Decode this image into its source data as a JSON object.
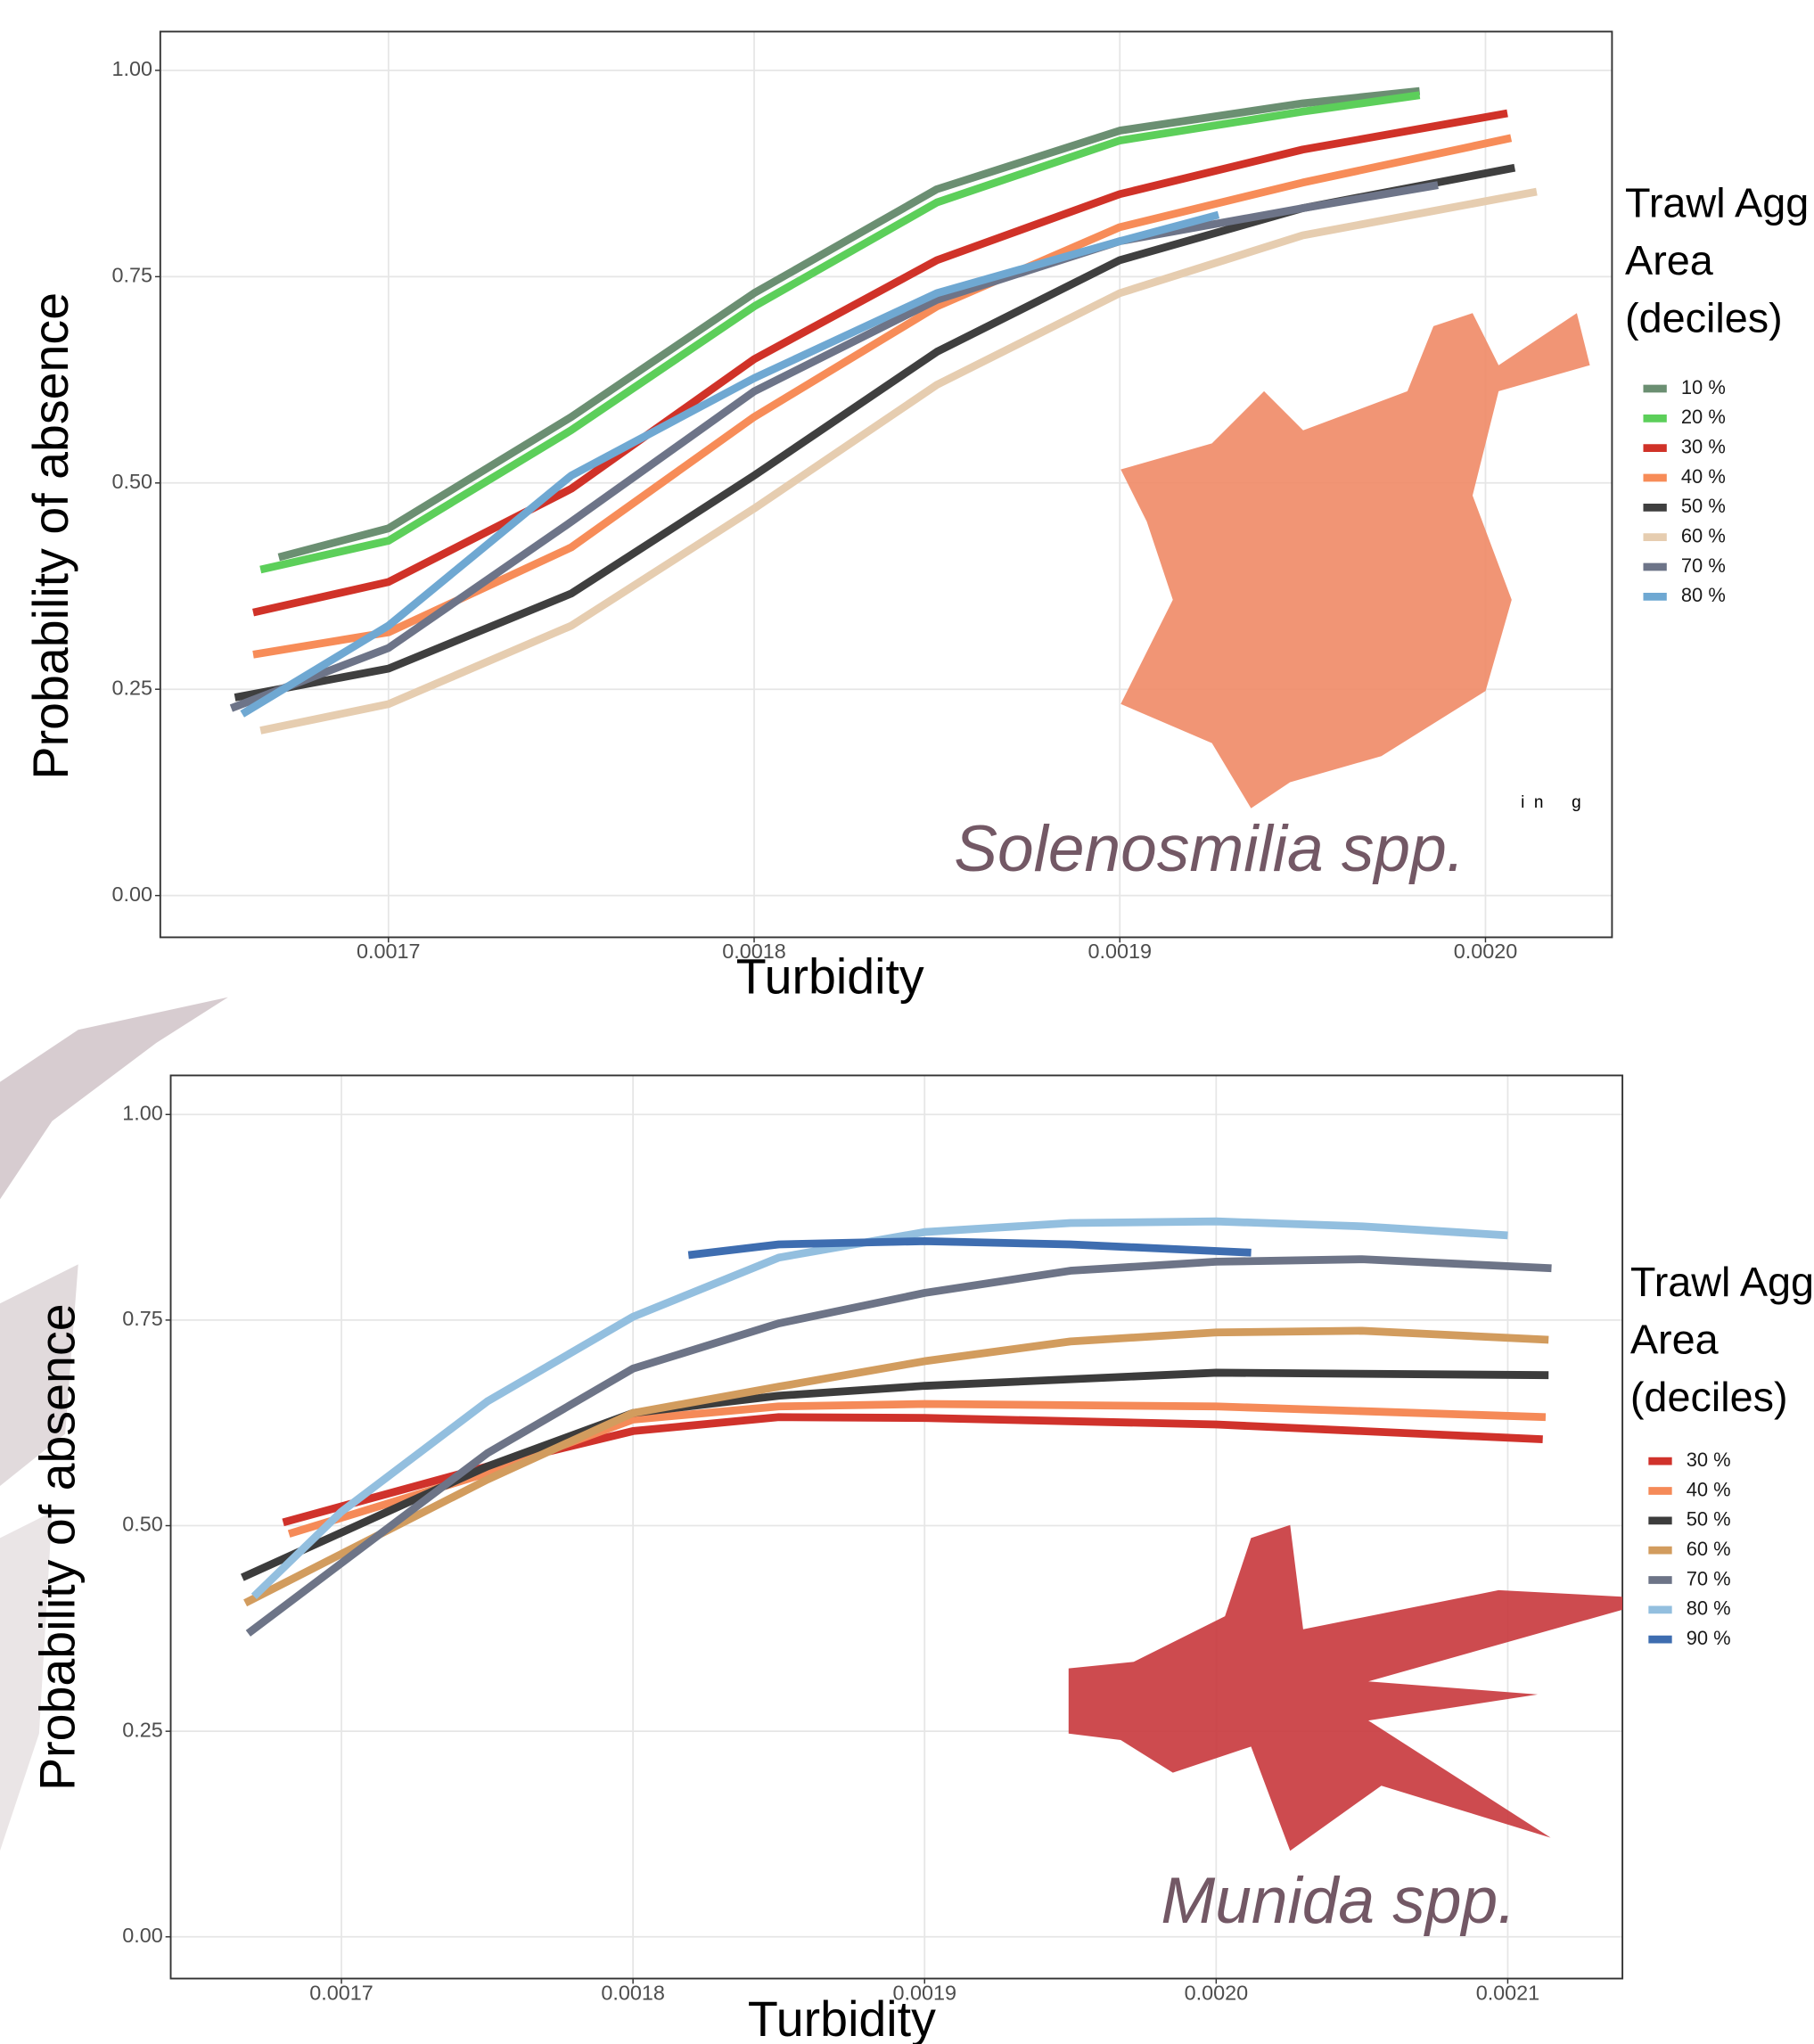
{
  "chart_data": [
    {
      "type": "line",
      "x_label": "Turbidity",
      "y_label": "Probability of absence",
      "annotations": [
        "Solenosmilia spp.",
        "i  n      g"
      ],
      "legend_title": [
        "Trawl Agg",
        "Area",
        "(deciles)"
      ],
      "xlim": [
        0.0016376,
        0.0020346
      ],
      "ylim": [
        -0.0506,
        1.047
      ],
      "xticks": [
        0.0017,
        0.0018,
        0.0019,
        {
          "value": 0.002,
          "label": "0.0020"
        }
      ],
      "yticks": [
        {
          "value": 0,
          "label": "0.00"
        },
        {
          "value": 0.25,
          "label": "0.25"
        },
        {
          "value": 0.5,
          "label": "0.50"
        },
        {
          "value": 0.75,
          "label": "0.75"
        },
        {
          "value": 1,
          "label": "1.00"
        }
      ],
      "grid": true,
      "series": [
        {
          "name": "10 %",
          "color": "#6b8f72",
          "x": [
            0.00167,
            0.0017,
            0.00175,
            0.0018,
            0.00185,
            0.0019,
            0.00195,
            0.001982
          ],
          "values": [
            0.41,
            0.445,
            0.58,
            0.73,
            0.856,
            0.927,
            0.96,
            0.975
          ]
        },
        {
          "name": "20 %",
          "color": "#5ccf5a",
          "x": [
            0.001665,
            0.0017,
            0.00175,
            0.0018,
            0.00185,
            0.0019,
            0.00195,
            0.001982
          ],
          "values": [
            0.395,
            0.43,
            0.564,
            0.714,
            0.84,
            0.915,
            0.95,
            0.97
          ]
        },
        {
          "name": "30 %",
          "color": "#d03228",
          "x": [
            0.001663,
            0.0017,
            0.00175,
            0.0018,
            0.00185,
            0.0019,
            0.00195,
            0.002006
          ],
          "values": [
            0.343,
            0.38,
            0.493,
            0.65,
            0.77,
            0.85,
            0.904,
            0.948
          ]
        },
        {
          "name": "40 %",
          "color": "#f78c58",
          "x": [
            0.001663,
            0.0017,
            0.00175,
            0.0018,
            0.00185,
            0.0019,
            0.00195,
            0.002007
          ],
          "values": [
            0.292,
            0.319,
            0.422,
            0.58,
            0.714,
            0.81,
            0.864,
            0.918
          ]
        },
        {
          "name": "50 %",
          "color": "#3f3f3f",
          "x": [
            0.001658,
            0.0017,
            0.00175,
            0.0018,
            0.00185,
            0.0019,
            0.00195,
            0.002008
          ],
          "values": [
            0.24,
            0.275,
            0.366,
            0.509,
            0.659,
            0.77,
            0.833,
            0.882
          ]
        },
        {
          "name": "60 %",
          "color": "#e6cdb0",
          "x": [
            0.001665,
            0.0017,
            0.00175,
            0.0018,
            0.00185,
            0.0019,
            0.00195,
            0.002014
          ],
          "values": [
            0.2,
            0.232,
            0.327,
            0.469,
            0.619,
            0.73,
            0.8,
            0.853
          ]
        },
        {
          "name": "70 %",
          "color": "#6d7488",
          "x": [
            0.001657,
            0.0017,
            0.00175,
            0.0018,
            0.00185,
            0.0019,
            0.00195,
            0.001987
          ],
          "values": [
            0.227,
            0.3,
            0.453,
            0.611,
            0.722,
            0.793,
            0.833,
            0.861
          ]
        },
        {
          "name": "80 %",
          "color": "#6fa8d2",
          "x": [
            0.00166,
            0.0017,
            0.00175,
            0.0018,
            0.00185,
            0.0019,
            0.001927
          ],
          "values": [
            0.22,
            0.327,
            0.509,
            0.627,
            0.73,
            0.793,
            0.825
          ]
        }
      ]
    },
    {
      "type": "line",
      "x_label": "Turbidity",
      "y_label": "Probability of absence",
      "annotations": [
        "Munida spp."
      ],
      "legend_title": [
        "Trawl Agg",
        "Area",
        "(deciles)"
      ],
      "xlim": [
        0.00164145,
        0.00213933
      ],
      "ylim": [
        -0.0507,
        1.0475
      ],
      "xticks": [
        0.0017,
        0.0018,
        0.0019,
        {
          "value": 0.002,
          "label": "0.0020"
        },
        0.0021
      ],
      "yticks": [
        {
          "value": 0,
          "label": "0.00"
        },
        {
          "value": 0.25,
          "label": "0.25"
        },
        {
          "value": 0.5,
          "label": "0.50"
        },
        {
          "value": 0.75,
          "label": "0.75"
        },
        {
          "value": 1,
          "label": "1.00"
        }
      ],
      "grid": true,
      "series": [
        {
          "name": "30 %",
          "color": "#d0322b",
          "x": [
            0.00168,
            0.00175,
            0.0018,
            0.00185,
            0.0019,
            0.002,
            0.002112
          ],
          "values": [
            0.504,
            0.572,
            0.615,
            0.632,
            0.631,
            0.623,
            0.605
          ]
        },
        {
          "name": "40 %",
          "color": "#f58a58",
          "x": [
            0.001682,
            0.00175,
            0.0018,
            0.00185,
            0.0019,
            0.002,
            0.002113
          ],
          "values": [
            0.49,
            0.564,
            0.629,
            0.645,
            0.648,
            0.645,
            0.632
          ]
        },
        {
          "name": "50 %",
          "color": "#3c3c3c",
          "x": [
            0.001666,
            0.00175,
            0.0018,
            0.00185,
            0.0019,
            0.002,
            0.002114
          ],
          "values": [
            0.437,
            0.572,
            0.637,
            0.658,
            0.67,
            0.686,
            0.683
          ]
        },
        {
          "name": "60 %",
          "color": "#d29c5e",
          "x": [
            0.001667,
            0.00175,
            0.0018,
            0.00185,
            0.0019,
            0.00195,
            0.002,
            0.00205,
            0.002114
          ],
          "values": [
            0.406,
            0.556,
            0.637,
            0.669,
            0.7,
            0.724,
            0.735,
            0.737,
            0.726
          ]
        },
        {
          "name": "70 %",
          "color": "#6d7487",
          "x": [
            0.001668,
            0.00175,
            0.0018,
            0.00185,
            0.0019,
            0.00195,
            0.002,
            0.00205,
            0.002115
          ],
          "values": [
            0.369,
            0.588,
            0.691,
            0.746,
            0.783,
            0.81,
            0.821,
            0.824,
            0.813
          ]
        },
        {
          "name": "80 %",
          "color": "#93bfdf",
          "x": [
            0.00167,
            0.0017,
            0.00175,
            0.0018,
            0.00185,
            0.0019,
            0.00195,
            0.002,
            0.00205,
            0.0021
          ],
          "values": [
            0.414,
            0.517,
            0.651,
            0.754,
            0.826,
            0.857,
            0.868,
            0.87,
            0.864,
            0.853
          ]
        },
        {
          "name": "90 %",
          "color": "#3e6db0",
          "x": [
            0.001819,
            0.00185,
            0.0019,
            0.00195,
            0.002012
          ],
          "values": [
            0.829,
            0.842,
            0.846,
            0.842,
            0.832
          ]
        }
      ]
    }
  ]
}
